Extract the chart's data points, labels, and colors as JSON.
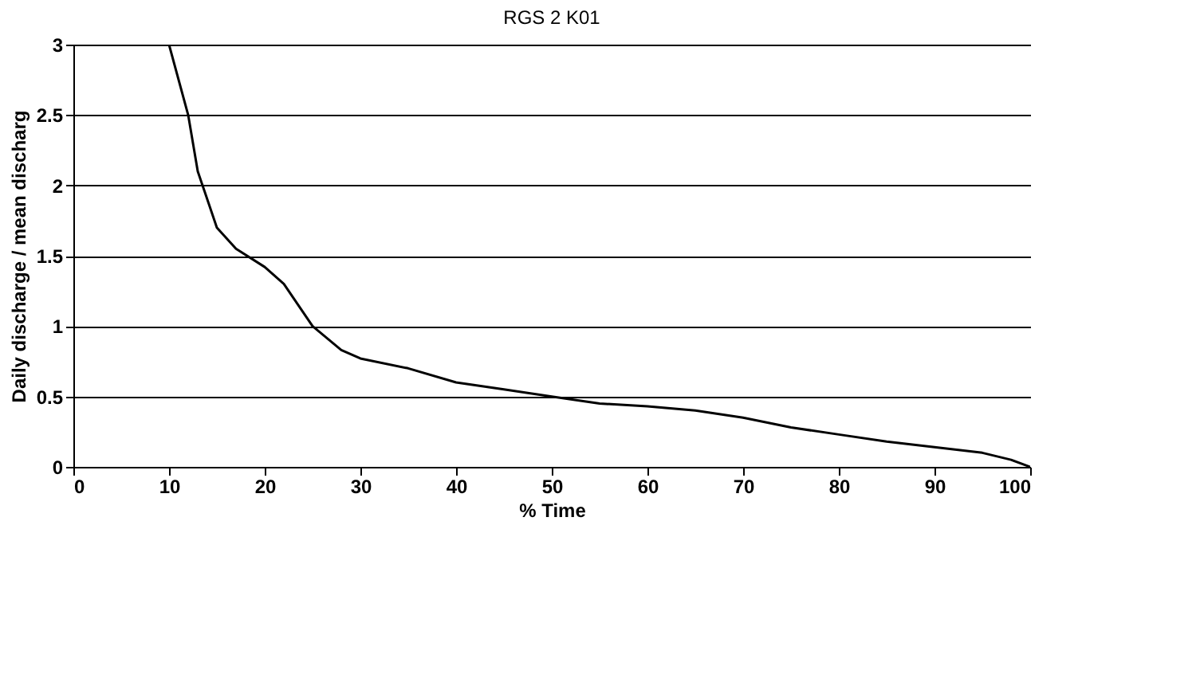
{
  "chart_data": {
    "type": "line",
    "title": "RGS  2 K01",
    "xlabel": "% Time",
    "ylabel": "Daily discharge / mean discharg",
    "x": [
      10,
      12,
      13,
      15,
      17,
      20,
      22,
      25,
      28,
      30,
      35,
      40,
      45,
      50,
      55,
      60,
      65,
      70,
      75,
      80,
      85,
      90,
      95,
      98,
      100
    ],
    "series": [
      {
        "color": "#000000",
        "values": [
          3,
          2.5,
          2.1,
          1.7,
          1.55,
          1.42,
          1.3,
          1.0,
          0.83,
          0.77,
          0.7,
          0.6,
          0.55,
          0.5,
          0.45,
          0.43,
          0.4,
          0.35,
          0.28,
          0.23,
          0.18,
          0.14,
          0.1,
          0.05,
          0.0
        ]
      }
    ],
    "xlim": [
      0,
      100
    ],
    "xticks": [
      0,
      10,
      20,
      30,
      40,
      50,
      60,
      70,
      80,
      90,
      100
    ],
    "ylim": [
      0,
      3
    ],
    "yticks": [
      0,
      0.5,
      1,
      1.5,
      2,
      2.5,
      3
    ],
    "grid": "y",
    "marker": "none",
    "line_style": "solid"
  }
}
